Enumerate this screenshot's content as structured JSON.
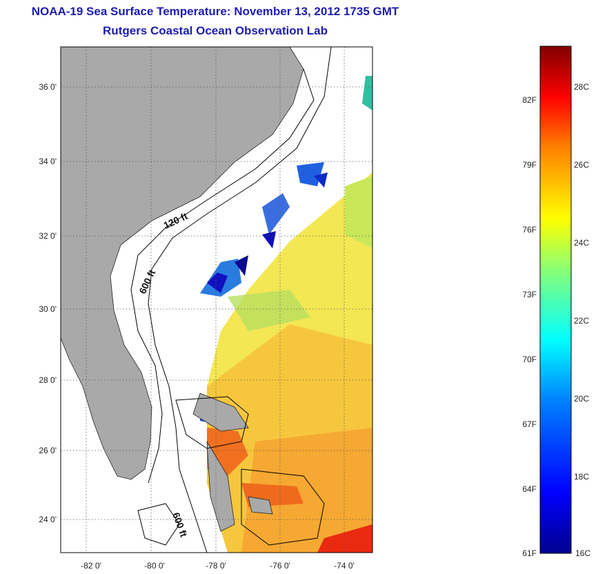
{
  "header": {
    "title": "NOAA-19 Sea Surface Temperature:  November 13, 2012 1735 GMT",
    "subtitle": "Rutgers Coastal Ocean Observation Lab"
  },
  "map": {
    "lat_labels": [
      "36 0'",
      "34 0'",
      "32 0'",
      "30 0'",
      "28 0'",
      "26 0'",
      "24 0'"
    ],
    "lon_labels": [
      "-82 0'",
      "-80 0'",
      "-78 0'",
      "-76 0'",
      "-74 0'"
    ],
    "contour_labels": [
      "120 ft",
      "600 ft",
      "600 ft"
    ],
    "colors": {
      "land": "#a9a9a9",
      "ocean": "#ffffff",
      "grid": "#555555"
    }
  },
  "colorbar": {
    "fahrenheit_labels": [
      "82F",
      "79F",
      "76F",
      "73F",
      "70F",
      "67F",
      "64F",
      "61F"
    ],
    "celsius_labels": [
      "28C",
      "26C",
      "24C",
      "22C",
      "20C",
      "18C",
      "16C"
    ],
    "colors": [
      "#00008f",
      "#0000ff",
      "#0080ff",
      "#00ffff",
      "#80ff80",
      "#ffff00",
      "#ff8000",
      "#ff0000",
      "#800000"
    ]
  }
}
